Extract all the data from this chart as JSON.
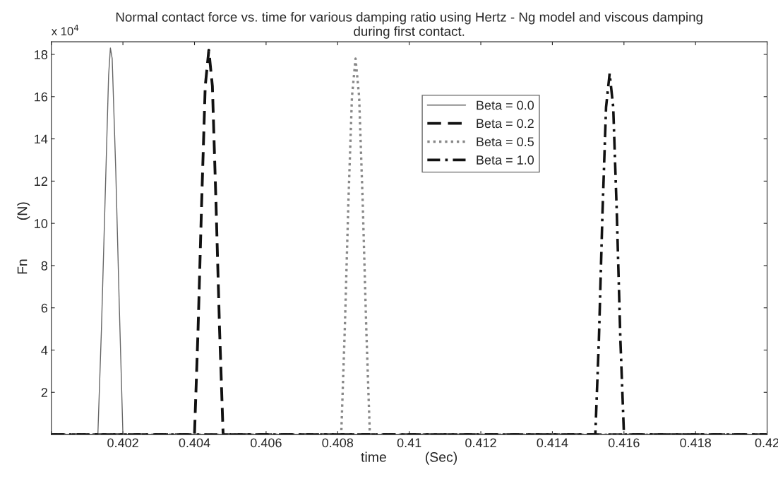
{
  "chart_data": {
    "type": "line",
    "title": "Normal contact force vs. time for various damping ratio using Hertz - Ng model and viscous damping\nduring first contact.",
    "xlabel": "time          (Sec)",
    "ylabel": "Fn          (N)",
    "annotations": [
      "x 10$^{4}$"
    ],
    "series": [
      {
        "name": "Beta = 0.0",
        "color": "#666666",
        "line_style": "solid",
        "x": [
          0.4,
          0.4013,
          0.4014,
          0.4015,
          0.4016,
          0.40165,
          0.4017,
          0.4018,
          0.4019,
          0.402,
          0.42
        ],
        "values": [
          0,
          0,
          5,
          11,
          17,
          18.3,
          17.8,
          12.5,
          6,
          0,
          0
        ]
      },
      {
        "name": "Beta = 0.2",
        "color": "#111111",
        "line_style": "dashed",
        "x": [
          0.4,
          0.404,
          0.4041,
          0.4042,
          0.4043,
          0.4044,
          0.4045,
          0.4046,
          0.4047,
          0.4048,
          0.42
        ],
        "values": [
          0,
          0,
          5,
          11,
          16.5,
          18.2,
          16.5,
          11,
          5,
          0,
          0
        ]
      },
      {
        "name": "Beta = 0.5",
        "color": "#888888",
        "line_style": "dotted",
        "x": [
          0.4,
          0.4081,
          0.4082,
          0.4083,
          0.4084,
          0.4085,
          0.4086,
          0.4087,
          0.4088,
          0.4089,
          0.42
        ],
        "values": [
          0,
          0,
          5,
          11,
          16,
          17.8,
          16,
          11,
          5,
          0,
          0
        ]
      },
      {
        "name": "Beta = 1.0",
        "color": "#111111",
        "line_style": "dashdot",
        "x": [
          0.4,
          0.4152,
          0.4153,
          0.4154,
          0.4155,
          0.4156,
          0.4157,
          0.4158,
          0.4159,
          0.416,
          0.42
        ],
        "values": [
          0,
          0,
          4.5,
          10.5,
          15.5,
          17.1,
          15.5,
          10.5,
          4.5,
          0,
          0
        ]
      }
    ],
    "xlim": [
      0.4,
      0.42
    ],
    "xticks": [
      {
        "value": 0.4,
        "label": null
      },
      0.402,
      0.404,
      0.406,
      0.408,
      0.41,
      0.412,
      0.414,
      0.416,
      0.418,
      0.42
    ],
    "ylim": [
      0,
      18.6
    ],
    "yticks": [
      2,
      4,
      6,
      8,
      10,
      12,
      14,
      16,
      18
    ],
    "grid": false,
    "legend": "top",
    "marker": "none"
  }
}
